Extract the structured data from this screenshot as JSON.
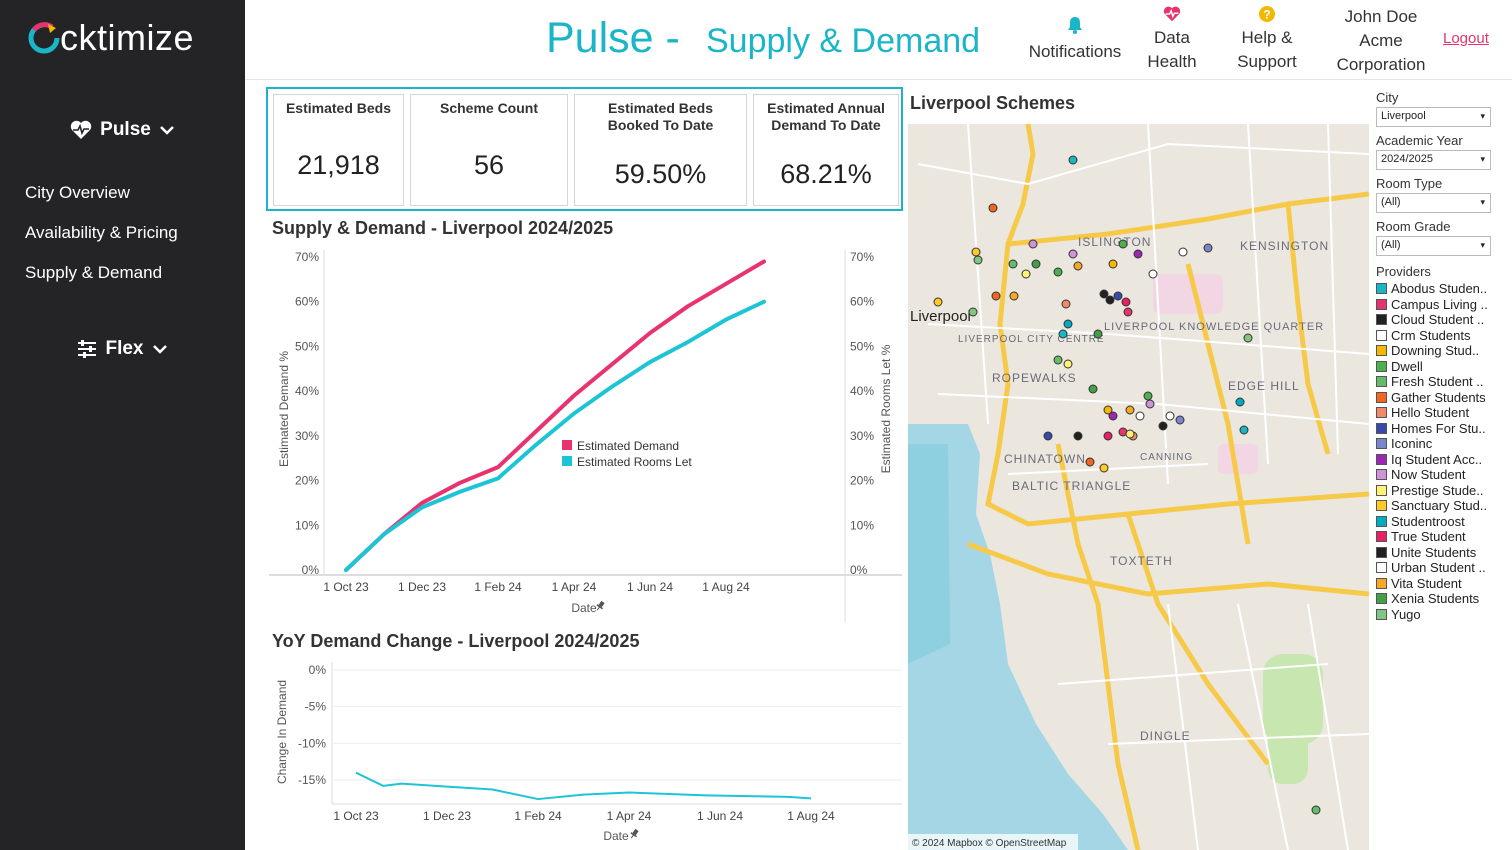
{
  "app": {
    "brand": "cktimize",
    "title": "Pulse -",
    "subtitle": "Supply & Demand",
    "accent": "#1bb5c8"
  },
  "sidebar": {
    "sections": [
      {
        "label": "Pulse",
        "icon": "heart-pulse-icon"
      },
      {
        "label": "Flex",
        "icon": "sliders-icon"
      }
    ],
    "links": [
      "City Overview",
      "Availability & Pricing",
      "Supply & Demand"
    ]
  },
  "header": {
    "notifications": "Notifications",
    "data_health": [
      "Data",
      "Health"
    ],
    "help": [
      "Help &",
      "Support"
    ],
    "user_name": "John Doe",
    "org": [
      "Acme",
      "Corporation"
    ],
    "logout": "Logout"
  },
  "kpis": [
    {
      "label": "Estimated Beds",
      "value": "21,918"
    },
    {
      "label": "Scheme Count",
      "value": "56"
    },
    {
      "label": "Estimated Beds Booked To Date",
      "value": "59.50%"
    },
    {
      "label": "Estimated Annual Demand To Date",
      "value": "68.21%"
    }
  ],
  "charts": {
    "supply_title": "Supply & Demand - Liverpool 2024/2025",
    "yoy_title": "YoY Demand Change - Liverpool 2024/2025"
  },
  "chart_data": [
    {
      "type": "line",
      "title": "Supply & Demand - Liverpool 2024/2025",
      "xlabel": "Date",
      "ylabel": "Estimated Demand %",
      "y2label": "Estimated Rooms Let %",
      "x_ticks": [
        "1 Oct 23",
        "1 Dec 23",
        "1 Feb 24",
        "1 Apr 24",
        "1 Jun 24",
        "1 Aug 24"
      ],
      "y_ticks": [
        "0%",
        "10%",
        "20%",
        "30%",
        "40%",
        "50%",
        "60%",
        "70%"
      ],
      "ylim": [
        0,
        70
      ],
      "x": [
        "1 Oct 23",
        "1 Nov 23",
        "1 Dec 23",
        "1 Jan 24",
        "1 Feb 24",
        "1 Mar 24",
        "1 Apr 24",
        "1 May 24",
        "1 Jun 24",
        "1 Jul 24",
        "1 Aug 24",
        "1 Sep 24"
      ],
      "series": [
        {
          "name": "Estimated Demand",
          "color": "#e8336f",
          "values": [
            0,
            8,
            15,
            19.5,
            23,
            31,
            39,
            46,
            53,
            59,
            64,
            69
          ]
        },
        {
          "name": "Estimated Rooms Let",
          "color": "#1dc4d6",
          "values": [
            0,
            8,
            14,
            17.5,
            20.5,
            28,
            35,
            41,
            46.5,
            51,
            56,
            60
          ]
        }
      ],
      "legend": "center-right"
    },
    {
      "type": "line",
      "title": "YoY Demand Change - Liverpool 2024/2025",
      "xlabel": "Date",
      "ylabel": "Change In Demand",
      "x_ticks": [
        "1 Oct 23",
        "1 Dec 23",
        "1 Feb 24",
        "1 Apr 24",
        "1 Jun 24",
        "1 Aug 24"
      ],
      "y_ticks": [
        "0%",
        "-5%",
        "-10%",
        "-15%"
      ],
      "ylim": [
        -18,
        0
      ],
      "x": [
        "1 Oct 23",
        "15 Oct 23",
        "1 Nov 23",
        "1 Dec 23",
        "1 Jan 24",
        "1 Feb 24",
        "1 Mar 24",
        "1 Apr 24",
        "1 May 24",
        "1 Jun 24",
        "1 Jul 24",
        "1 Aug 24",
        "15 Aug 24"
      ],
      "series": [
        {
          "name": "YoY Demand Change",
          "color": "#1dc4d6",
          "values": [
            -14,
            -15.8,
            -15.5,
            -15.9,
            -16.3,
            -17.6,
            -17.0,
            -16.7,
            -16.9,
            -17.1,
            -17.2,
            -17.3,
            -17.5
          ]
        }
      ]
    }
  ],
  "map": {
    "title": "Liverpool Schemes",
    "attribution": "© 2024 Mapbox © OpenStreetMap",
    "labels": [
      "Liverpool",
      "ISLINGTON",
      "KENSINGTON",
      "ROPEWALKS",
      "CHINATOWN",
      "BALTIC TRIANGLE",
      "TOXTETH",
      "DINGLE",
      "EDGE HILL",
      "CANNING",
      "LIVERPOOL KNOWLEDGE QUARTER",
      "LIVERPOOL CITY CENTRE"
    ]
  },
  "filters": {
    "city_label": "City",
    "city": "Liverpool",
    "year_label": "Academic Year",
    "year": "2024/2025",
    "room_type_label": "Room Type",
    "room_type": "(All)",
    "room_grade_label": "Room Grade",
    "room_grade": "(All)",
    "providers_label": "Providers"
  },
  "providers": [
    {
      "name": "Abodus Studen..",
      "color": "#1bb5c8"
    },
    {
      "name": "Campus Living ..",
      "color": "#e8336f"
    },
    {
      "name": "Cloud Student ..",
      "color": "#222222"
    },
    {
      "name": "Crm Students",
      "color": "#ffffff"
    },
    {
      "name": "Downing Stud..",
      "color": "#f5b800"
    },
    {
      "name": "Dwell",
      "color": "#4caf50"
    },
    {
      "name": "Fresh Student ..",
      "color": "#66bb6a"
    },
    {
      "name": "Gather Students",
      "color": "#f26522"
    },
    {
      "name": "Hello Student",
      "color": "#f08a6b"
    },
    {
      "name": "Homes For Stu..",
      "color": "#3949ab"
    },
    {
      "name": "Iconinc",
      "color": "#7986cb"
    },
    {
      "name": "Iq Student Acc..",
      "color": "#9c27b0"
    },
    {
      "name": "Now Student",
      "color": "#ce93d8"
    },
    {
      "name": "Prestige Stude..",
      "color": "#fff176"
    },
    {
      "name": "Sanctuary Stud..",
      "color": "#ffca28"
    },
    {
      "name": "Studentroost",
      "color": "#00acc1"
    },
    {
      "name": "True Student",
      "color": "#e91e63"
    },
    {
      "name": "Unite Students",
      "color": "#212121"
    },
    {
      "name": "Urban Student ..",
      "color": "#ffffff"
    },
    {
      "name": "Vita Student",
      "color": "#f9a825"
    },
    {
      "name": "Xenia Students",
      "color": "#43a047"
    },
    {
      "name": "Yugo",
      "color": "#81c784"
    }
  ]
}
